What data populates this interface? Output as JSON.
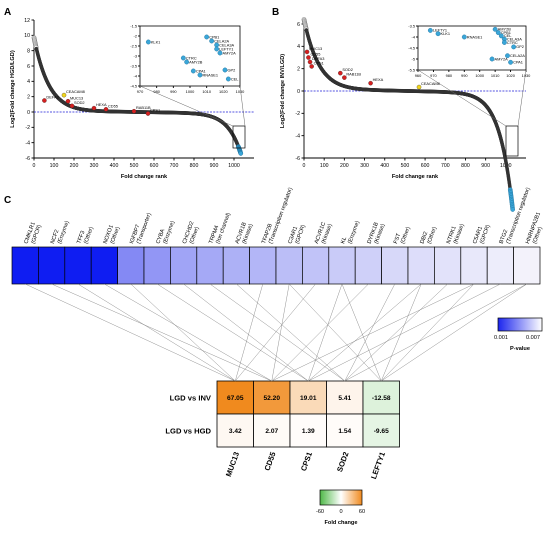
{
  "panels": {
    "a": "A",
    "b": "B",
    "c": "C"
  },
  "chart_data": [
    {
      "type": "scatter",
      "panel": "A",
      "xlabel": "Fold change rank",
      "ylabel": "Log2(Fold change HGD/LGD)",
      "xlim": [
        0,
        1100
      ],
      "ylim": [
        -6,
        12
      ],
      "xticks": [
        0,
        100,
        200,
        300,
        400,
        500,
        600,
        700,
        800,
        900,
        1000
      ],
      "yticks": [
        -6,
        -4,
        -2,
        0,
        2,
        4,
        6,
        8,
        10,
        12
      ],
      "n_points": 1035,
      "reference_line_y": 0,
      "labels": [
        {
          "text": "DEFA3",
          "x": 52,
          "y": 1.5
        },
        {
          "text": "CEACAM8",
          "x": 150,
          "y": 2.2
        },
        {
          "text": "MUC13",
          "x": 170,
          "y": 1.4
        },
        {
          "text": "SOD2",
          "x": 190,
          "y": 0.8
        },
        {
          "text": "HEXA",
          "x": 300,
          "y": 0.5
        },
        {
          "text": "CD55",
          "x": 360,
          "y": 0.35
        },
        {
          "text": "RAB11B",
          "x": 500,
          "y": 0.1
        },
        {
          "text": "CPS1",
          "x": 570,
          "y": -0.2
        }
      ],
      "inset": {
        "xlim": [
          970,
          1030
        ],
        "ylim": [
          -4.5,
          -1.5
        ],
        "xticks": [
          970,
          980,
          990,
          1000,
          1010,
          1020,
          1030
        ],
        "yticks": [
          -4.5,
          -4,
          -3.5,
          -3,
          -2.5,
          -2,
          -1.5
        ],
        "labels": [
          {
            "text": "KLK1",
            "x": 975,
            "y": -2.3
          },
          {
            "text": "CTRC",
            "x": 996,
            "y": -3.1
          },
          {
            "text": "AMY2B",
            "x": 998,
            "y": -3.3
          },
          {
            "text": "CPA1",
            "x": 1002,
            "y": -3.75
          },
          {
            "text": "RNASE1",
            "x": 1006,
            "y": -3.95
          },
          {
            "text": "CPB1",
            "x": 1010,
            "y": -2.05
          },
          {
            "text": "CELA2A",
            "x": 1013,
            "y": -2.25
          },
          {
            "text": "CELA3A",
            "x": 1016,
            "y": -2.45
          },
          {
            "text": "LEFTY1",
            "x": 1016,
            "y": -2.65
          },
          {
            "text": "AMY2A",
            "x": 1018,
            "y": -2.85
          },
          {
            "text": "GP2",
            "x": 1021,
            "y": -3.7
          },
          {
            "text": "CEL",
            "x": 1023,
            "y": -4.15
          }
        ]
      }
    },
    {
      "type": "scatter",
      "panel": "B",
      "xlabel": "Fold change rank",
      "ylabel": "Log2(Fold change INV/LGD)",
      "xlim": [
        0,
        1100
      ],
      "ylim": [
        -6,
        6
      ],
      "xticks": [
        0,
        100,
        200,
        300,
        400,
        500,
        600,
        700,
        800,
        900,
        1000
      ],
      "yticks": [
        -6,
        -4,
        -2,
        0,
        2,
        4,
        6
      ],
      "n_points": 1035,
      "reference_line_y": 0,
      "labels": [
        {
          "text": "MUC13",
          "x": 15,
          "y": 3.5
        },
        {
          "text": "CD55",
          "x": 22,
          "y": 3.0
        },
        {
          "text": "DEFA3",
          "x": 30,
          "y": 2.6
        },
        {
          "text": "CPS1",
          "x": 38,
          "y": 2.2
        },
        {
          "text": "SOD2",
          "x": 180,
          "y": 1.6
        },
        {
          "text": "RAB11B",
          "x": 200,
          "y": 1.2
        },
        {
          "text": "HEXA",
          "x": 330,
          "y": 0.7
        },
        {
          "text": "CEACAM8",
          "x": 570,
          "y": 0.35
        }
      ],
      "inset": {
        "xlim": [
          960,
          1030
        ],
        "ylim": [
          -5.5,
          -3.5
        ],
        "xticks": [
          960,
          970,
          980,
          990,
          1000,
          1010,
          1020,
          1030
        ],
        "yticks": [
          -5.5,
          -5,
          -4.5,
          -4,
          -3.5
        ],
        "labels": [
          {
            "text": "LEFTY1",
            "x": 968,
            "y": -3.7
          },
          {
            "text": "KLK1",
            "x": 973,
            "y": -3.85
          },
          {
            "text": "RNASE1",
            "x": 990,
            "y": -4.0
          },
          {
            "text": "AMY2B",
            "x": 1010,
            "y": -3.65
          },
          {
            "text": "CPB1",
            "x": 1012,
            "y": -3.8
          },
          {
            "text": "CEL",
            "x": 1014,
            "y": -3.95
          },
          {
            "text": "CELA3A",
            "x": 1016,
            "y": -4.1
          },
          {
            "text": "CTRC",
            "x": 1016,
            "y": -4.25
          },
          {
            "text": "GP2",
            "x": 1022,
            "y": -4.45
          },
          {
            "text": "CELA2A",
            "x": 1018,
            "y": -4.85
          },
          {
            "text": "AMY2A",
            "x": 1008,
            "y": -5.0
          },
          {
            "text": "CPA1",
            "x": 1020,
            "y": -5.15
          }
        ]
      }
    },
    {
      "type": "heatmap",
      "panel": "C",
      "title": "P-value",
      "colorbar_ticks": [
        "0.001",
        "0.007"
      ],
      "range": [
        0.001,
        0.007
      ],
      "pvalue_genes": [
        {
          "name": "CMKLR1",
          "type": "(GPCR)",
          "p": 0.001
        },
        {
          "name": "NCF2",
          "type": "(Enzyme)",
          "p": 0.001
        },
        {
          "name": "TFF3",
          "type": "(Other)",
          "p": 0.001
        },
        {
          "name": "NOXO1",
          "type": "(Other)",
          "p": 0.0012
        },
        {
          "name": "IGFBP7",
          "type": "(Transporter)",
          "p": 0.003
        },
        {
          "name": "CYBA",
          "type": "(Enzyme)",
          "p": 0.0035
        },
        {
          "name": "CHCHD2",
          "type": "(Other)",
          "p": 0.004
        },
        {
          "name": "TRPM4",
          "type": "(Ion channel)",
          "p": 0.0042
        },
        {
          "name": "ACVR1B",
          "type": "(Kinase)",
          "p": 0.0045
        },
        {
          "name": "TFAP2B",
          "type": "(Transcription regulator)",
          "p": 0.0047
        },
        {
          "name": "C3AR1",
          "type": "(GPCR)",
          "p": 0.005
        },
        {
          "name": "ACVR1C",
          "type": "(Kinase)",
          "p": 0.0052
        },
        {
          "name": "KL",
          "type": "(Enzyme)",
          "p": 0.0055
        },
        {
          "name": "DYRK1B",
          "type": "(Kinase)",
          "p": 0.0057
        },
        {
          "name": "FST",
          "type": "(Other)",
          "p": 0.006
        },
        {
          "name": "DBI2",
          "type": "(Other)",
          "p": 0.0062
        },
        {
          "name": "NTRK1",
          "type": "(Kinase)",
          "p": 0.0064
        },
        {
          "name": "C5AR1",
          "type": "(GPCR)",
          "p": 0.0066
        },
        {
          "name": "BTG2",
          "type": "(Transcription regulator)",
          "p": 0.0068
        },
        {
          "name": "HNRNPA2B1",
          "type": "(Other)",
          "p": 0.007
        }
      ],
      "fold_change": {
        "rows": [
          "LGD vs INV",
          "LGD vs HGD"
        ],
        "columns": [
          "MUC13",
          "CD55",
          "CPS1",
          "SOD2",
          "LEFTY1"
        ],
        "values": [
          [
            "67.05",
            "52.20",
            "19.01",
            "5.41",
            "-12.58"
          ],
          [
            "3.42",
            "2.07",
            "1.39",
            "1.54",
            "-9.65"
          ]
        ],
        "legend_title": "Fold change",
        "legend_ticks": [
          "-60",
          "0",
          "60"
        ],
        "range": [
          -60,
          60
        ]
      }
    }
  ]
}
